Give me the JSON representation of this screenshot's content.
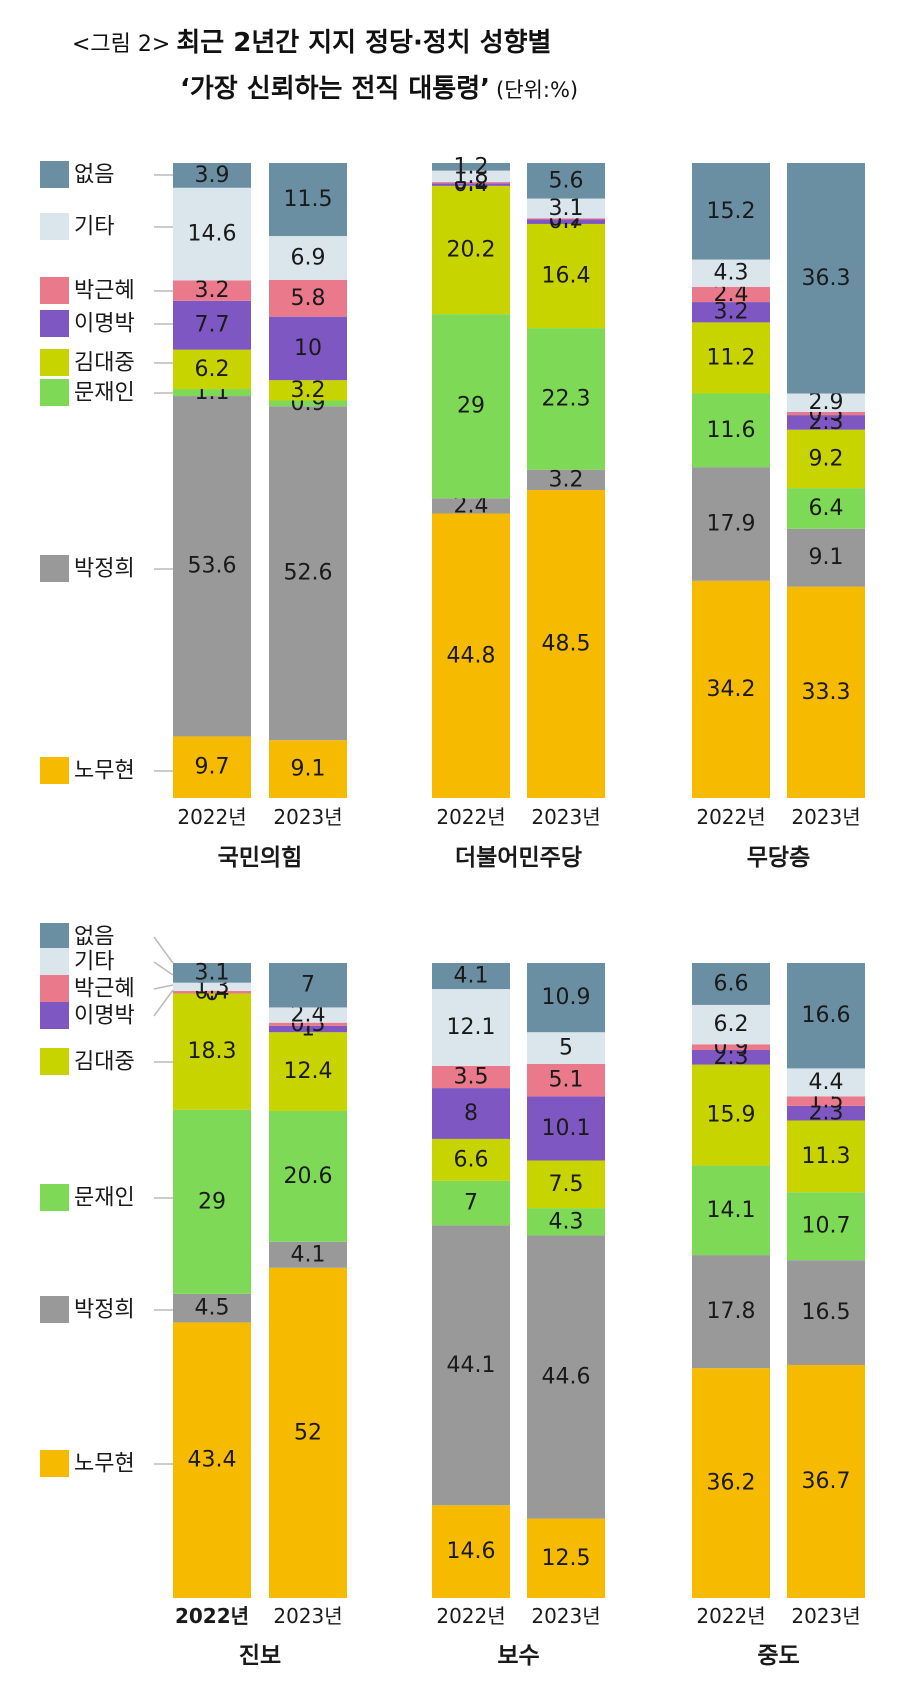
{
  "title": {
    "figure_label": "<그림 2>",
    "line1": "최근 2년간 지지 정당·정치 성향별",
    "line2": "‘가장 신뢰하는 전직 대통령’",
    "unit": "(단위:%)"
  },
  "legend_labels": [
    "없음",
    "기타",
    "박근혜",
    "이명박",
    "김대중",
    "문재인",
    "박정희",
    "노무현"
  ],
  "colors": {
    "없음": "#6b8fa2",
    "기타": "#dae5ec",
    "박근혜": "#ea7a8b",
    "이명박": "#7e57c2",
    "김대중": "#c8d400",
    "문재인": "#7ed957",
    "박정희": "#999999",
    "노무현": "#f6bb00"
  },
  "chart_data": [
    {
      "type": "bar",
      "stacked": true,
      "title": "국민의힘",
      "categories": [
        "2022년",
        "2023년"
      ],
      "series": [
        {
          "name": "노무현",
          "values": [
            9.7,
            9.1
          ]
        },
        {
          "name": "박정희",
          "values": [
            53.6,
            52.6
          ]
        },
        {
          "name": "문재인",
          "values": [
            1.1,
            0.9
          ]
        },
        {
          "name": "김대중",
          "values": [
            6.2,
            3.2
          ]
        },
        {
          "name": "이명박",
          "values": [
            7.7,
            10
          ]
        },
        {
          "name": "박근혜",
          "values": [
            3.2,
            5.8
          ]
        },
        {
          "name": "기타",
          "values": [
            14.6,
            6.9
          ]
        },
        {
          "name": "없음",
          "values": [
            3.9,
            11.5
          ]
        }
      ]
    },
    {
      "type": "bar",
      "stacked": true,
      "title": "더불어민주당",
      "categories": [
        "2022년",
        "2023년"
      ],
      "series": [
        {
          "name": "노무현",
          "values": [
            44.8,
            48.5
          ]
        },
        {
          "name": "박정희",
          "values": [
            2.4,
            3.2
          ]
        },
        {
          "name": "문재인",
          "values": [
            29,
            22.3
          ]
        },
        {
          "name": "김대중",
          "values": [
            20.2,
            16.4
          ]
        },
        {
          "name": "이명박",
          "values": [
            0.4,
            0.7
          ]
        },
        {
          "name": "박근혜",
          "values": [
            0.2,
            0.2
          ]
        },
        {
          "name": "기타",
          "values": [
            1.8,
            3.1
          ]
        },
        {
          "name": "없음",
          "values": [
            1.2,
            5.6
          ]
        }
      ]
    },
    {
      "type": "bar",
      "stacked": true,
      "title": "무당층",
      "categories": [
        "2022년",
        "2023년"
      ],
      "series": [
        {
          "name": "노무현",
          "values": [
            34.2,
            33.3
          ]
        },
        {
          "name": "박정희",
          "values": [
            17.9,
            9.1
          ]
        },
        {
          "name": "문재인",
          "values": [
            11.6,
            6.4
          ]
        },
        {
          "name": "김대중",
          "values": [
            11.2,
            9.2
          ]
        },
        {
          "name": "이명박",
          "values": [
            3.2,
            2.3
          ]
        },
        {
          "name": "박근혜",
          "values": [
            2.4,
            0.5
          ]
        },
        {
          "name": "기타",
          "values": [
            4.3,
            2.9
          ]
        },
        {
          "name": "없음",
          "values": [
            15.2,
            36.3
          ]
        }
      ]
    },
    {
      "type": "bar",
      "stacked": true,
      "title": "진보",
      "categories": [
        "2022년",
        "2023년"
      ],
      "series": [
        {
          "name": "노무현",
          "values": [
            43.4,
            52
          ]
        },
        {
          "name": "박정희",
          "values": [
            4.5,
            4.1
          ]
        },
        {
          "name": "문재인",
          "values": [
            29,
            20.6
          ]
        },
        {
          "name": "김대중",
          "values": [
            18.3,
            12.4
          ]
        },
        {
          "name": "이명박",
          "values": [
            0,
            1
          ]
        },
        {
          "name": "박근혜",
          "values": [
            0.4,
            0.5
          ]
        },
        {
          "name": "기타",
          "values": [
            1.3,
            2.4
          ]
        },
        {
          "name": "없음",
          "values": [
            3.1,
            7
          ]
        }
      ]
    },
    {
      "type": "bar",
      "stacked": true,
      "title": "보수",
      "categories": [
        "2022년",
        "2023년"
      ],
      "series": [
        {
          "name": "노무현",
          "values": [
            14.6,
            12.5
          ]
        },
        {
          "name": "박정희",
          "values": [
            44.1,
            44.6
          ]
        },
        {
          "name": "문재인",
          "values": [
            7,
            4.3
          ]
        },
        {
          "name": "김대중",
          "values": [
            6.6,
            7.5
          ]
        },
        {
          "name": "이명박",
          "values": [
            8,
            10.1
          ]
        },
        {
          "name": "박근혜",
          "values": [
            3.5,
            5.1
          ]
        },
        {
          "name": "기타",
          "values": [
            12.1,
            5
          ]
        },
        {
          "name": "없음",
          "values": [
            4.1,
            10.9
          ]
        }
      ]
    },
    {
      "type": "bar",
      "stacked": true,
      "title": "중도",
      "categories": [
        "2022년",
        "2023년"
      ],
      "series": [
        {
          "name": "노무현",
          "values": [
            36.2,
            36.7
          ]
        },
        {
          "name": "박정희",
          "values": [
            17.8,
            16.5
          ]
        },
        {
          "name": "문재인",
          "values": [
            14.1,
            10.7
          ]
        },
        {
          "name": "김대중",
          "values": [
            15.9,
            11.3
          ]
        },
        {
          "name": "이명박",
          "values": [
            2.3,
            2.3
          ]
        },
        {
          "name": "박근혜",
          "values": [
            0.9,
            1.5
          ]
        },
        {
          "name": "기타",
          "values": [
            6.2,
            4.4
          ]
        },
        {
          "name": "없음",
          "values": [
            6.6,
            16.6
          ]
        }
      ]
    }
  ]
}
